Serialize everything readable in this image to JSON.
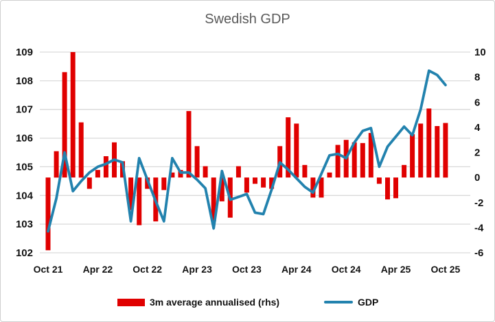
{
  "chart_data": {
    "type": "combo-bar-line",
    "title": "Swedish GDP",
    "categories": [
      "Oct 21",
      "Nov 21",
      "Dec 21",
      "Jan 22",
      "Feb 22",
      "Mar 22",
      "Apr 22",
      "May 22",
      "Jun 22",
      "Jul 22",
      "Aug 22",
      "Sep 22",
      "Oct 22",
      "Nov 22",
      "Dec 22",
      "Jan 23",
      "Feb 23",
      "Mar 23",
      "Apr 23",
      "May 23",
      "Jun 23",
      "Jul 23",
      "Aug 23",
      "Sep 23",
      "Oct 23",
      "Nov 23",
      "Dec 23",
      "Jan 24",
      "Feb 24",
      "Mar 24",
      "Apr 24",
      "May 24",
      "Jun 24",
      "Jul 24",
      "Aug 24",
      "Sep 24",
      "Oct 24",
      "Nov 24",
      "Dec 24",
      "Jan 25",
      "Feb 25",
      "Mar 25",
      "Apr 25",
      "May 25",
      "Jun 25",
      "Jul 25",
      "Aug 25",
      "Sep 25",
      "Oct 25"
    ],
    "x_tick_labels": [
      "Oct 21",
      "Apr 22",
      "Oct 22",
      "Apr 23",
      "Oct 23",
      "Apr 24",
      "Oct 24",
      "Apr 25",
      "Oct 25"
    ],
    "x_tick_every": 6,
    "left_axis": {
      "min": 102,
      "max": 109,
      "ticks": [
        109,
        108,
        107,
        106,
        105,
        104,
        103,
        102
      ]
    },
    "right_axis": {
      "min": -6,
      "max": 10,
      "ticks": [
        10,
        8,
        6,
        4,
        2,
        0,
        -2,
        -4,
        -6
      ]
    },
    "grid": "horizontal",
    "legend_position": "bottom",
    "series": [
      {
        "name": "3m average annualised (rhs)",
        "type": "bar",
        "axis": "right",
        "color": "#e00000",
        "values": [
          -5.8,
          2.1,
          8.4,
          10.0,
          4.4,
          -0.9,
          0.6,
          1.7,
          2.8,
          1.3,
          -2.6,
          -3.8,
          -0.9,
          -3.5,
          -1.0,
          0.4,
          0.6,
          5.3,
          2.5,
          0.9,
          -3.5,
          -1.9,
          -3.2,
          0.9,
          -1.2,
          -0.5,
          -0.8,
          -0.9,
          2.5,
          4.8,
          4.3,
          1.0,
          -1.6,
          -1.6,
          0.4,
          2.6,
          3.0,
          2.8,
          2.75,
          3.55,
          -0.5,
          -1.75,
          -1.65,
          1.0,
          3.45,
          4.3,
          5.5,
          4.1,
          4.35
        ]
      },
      {
        "name": "GDP",
        "type": "line",
        "axis": "left",
        "color": "#2282ae",
        "values": [
          102.75,
          103.9,
          105.5,
          104.15,
          104.5,
          104.8,
          105.0,
          105.1,
          105.25,
          105.15,
          103.1,
          105.3,
          104.55,
          103.8,
          103.1,
          105.3,
          104.8,
          104.8,
          104.55,
          104.25,
          102.85,
          104.85,
          103.85,
          103.95,
          104.05,
          103.4,
          103.35,
          104.2,
          105.15,
          104.9,
          104.6,
          104.3,
          104.1,
          104.75,
          105.4,
          105.45,
          105.3,
          105.85,
          106.25,
          106.35,
          105.0,
          105.7,
          106.05,
          106.4,
          106.1,
          107.0,
          108.35,
          108.2,
          107.85
        ]
      }
    ]
  },
  "legend": {
    "bar_label": "3m average annualised (rhs)",
    "line_label": "GDP"
  },
  "colors": {
    "bar": "#e00000",
    "line": "#2282ae",
    "gridline": "#d9d9d9",
    "tick_text": "#111111",
    "title_text": "#595959",
    "background": "#ffffff"
  }
}
